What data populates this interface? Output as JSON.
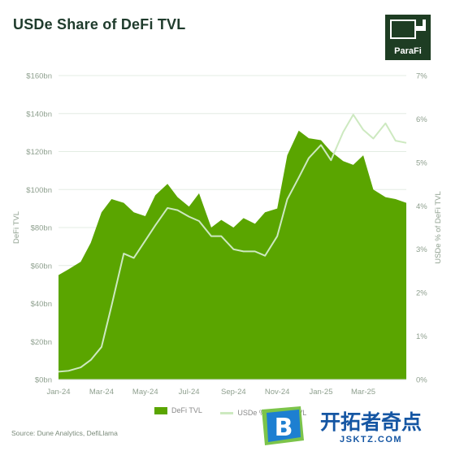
{
  "title": "USDe Share of DeFi TVL",
  "logo_text": "ParaFi",
  "source": "Source: Dune Analytics, DefiLlama",
  "watermark": {
    "text": "开拓者奇点",
    "url": "JSKTZ.COM",
    "badge_letter": "B"
  },
  "chart_data": {
    "type": "area",
    "title": "USDe Share of DeFi TVL",
    "ylabel": "DeFi TVL",
    "y2label": "USDe % of DeFi TVL",
    "ylim": [
      0,
      160
    ],
    "y2lim": [
      0,
      7
    ],
    "y_ticks": [
      "$0bn",
      "$20bn",
      "$40bn",
      "$60bn",
      "$80bn",
      "$100bn",
      "$120bn",
      "$140bn",
      "$160bn"
    ],
    "y2_ticks": [
      "0%",
      "1%",
      "2%",
      "3%",
      "4%",
      "5%",
      "6%",
      "7%"
    ],
    "x_ticks": [
      "Jan-24",
      "Mar-24",
      "May-24",
      "Jul-24",
      "Sep-24",
      "Nov-24",
      "Jan-25",
      "Mar-25"
    ],
    "legend": [
      "DeFi TVL",
      "USDe % of DeFi TVL"
    ],
    "x": [
      "2024-01-01",
      "2024-01-15",
      "2024-02-01",
      "2024-02-15",
      "2024-03-01",
      "2024-03-15",
      "2024-04-01",
      "2024-04-15",
      "2024-05-01",
      "2024-05-15",
      "2024-06-01",
      "2024-06-15",
      "2024-07-01",
      "2024-07-15",
      "2024-08-01",
      "2024-08-15",
      "2024-09-01",
      "2024-09-15",
      "2024-10-01",
      "2024-10-15",
      "2024-11-01",
      "2024-11-15",
      "2024-12-01",
      "2024-12-15",
      "2025-01-01",
      "2025-01-15",
      "2025-02-01",
      "2025-02-15",
      "2025-03-01",
      "2025-03-15",
      "2025-04-01",
      "2025-04-15",
      "2025-04-30"
    ],
    "series": [
      {
        "name": "DeFi TVL",
        "type": "area",
        "axis": "left",
        "color": "#5aa500",
        "values": [
          55,
          58,
          62,
          72,
          88,
          95,
          93,
          88,
          86,
          97,
          103,
          96,
          91,
          98,
          80,
          84,
          80,
          85,
          82,
          88,
          90,
          118,
          131,
          127,
          126,
          120,
          115,
          113,
          118,
          100,
          96,
          95,
          93
        ]
      },
      {
        "name": "USDe % of DeFi TVL",
        "type": "line",
        "axis": "right",
        "color": "#cde9c0",
        "values": [
          0.18,
          0.2,
          0.28,
          0.45,
          0.75,
          1.7,
          2.9,
          2.8,
          3.2,
          3.55,
          3.95,
          3.9,
          3.75,
          3.65,
          3.3,
          3.3,
          3.0,
          2.95,
          2.95,
          2.85,
          3.3,
          4.15,
          4.65,
          5.1,
          5.4,
          5.05,
          5.7,
          6.1,
          5.75,
          5.55,
          5.9,
          5.5,
          5.45
        ]
      }
    ]
  }
}
